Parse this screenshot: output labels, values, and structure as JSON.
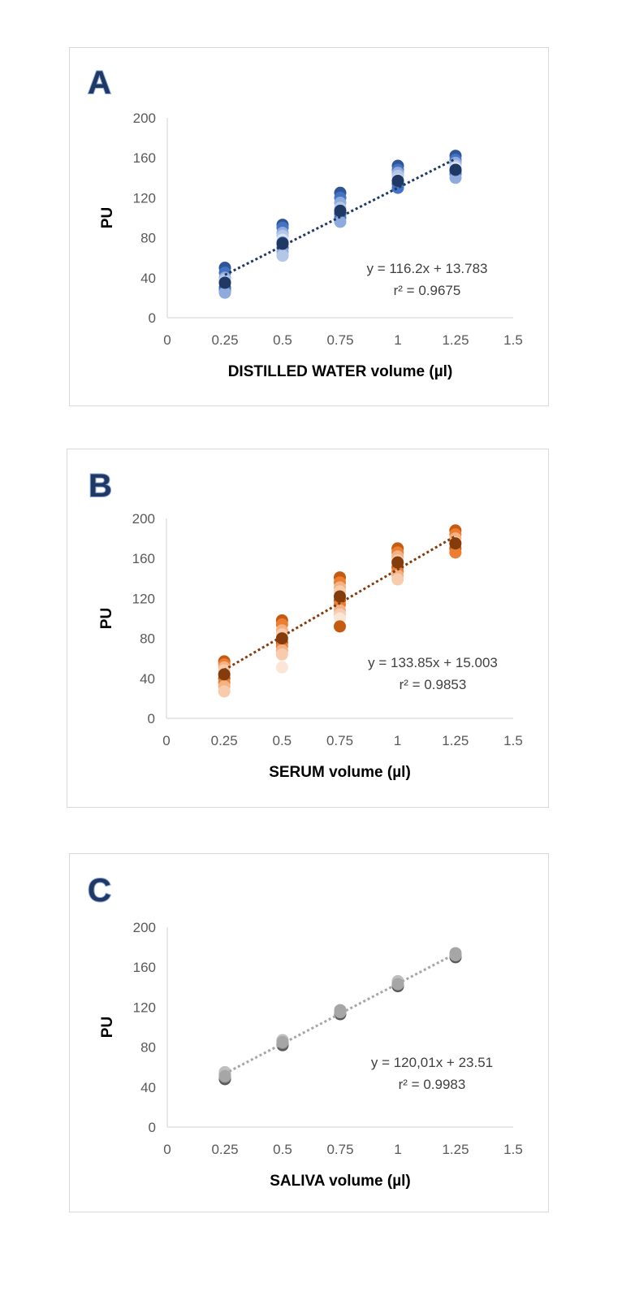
{
  "chart_data": [
    {
      "type": "scatter",
      "panel_label": "A",
      "xlabel": "DISTILLED WATER volume (µl)",
      "ylabel": "PU",
      "xlim": [
        0,
        1.5
      ],
      "ylim": [
        0,
        200
      ],
      "x_ticks": [
        "0",
        "0.25",
        "0.5",
        "0.75",
        "1",
        "1.25",
        "1.5"
      ],
      "y_ticks": [
        "0",
        "40",
        "80",
        "120",
        "160",
        "200"
      ],
      "equation": "y = 116.2x + 13.783",
      "r_squared": "r² = 0.9675",
      "trendline": {
        "slope": 116.2,
        "intercept": 13.783,
        "x_range": [
          0.25,
          1.25
        ]
      },
      "series_colors": [
        "#2f5597",
        "#4472c4",
        "#8faadc",
        "#b4c7e7",
        "#dae3f3"
      ],
      "mean_color": "#1f3864",
      "trend_color": "#1f3864",
      "letter_color": "#1f3864",
      "letter_outline": "#8faadc",
      "points": [
        {
          "x": 0.25,
          "values": [
            50,
            45,
            40,
            38,
            34,
            30,
            27,
            25
          ]
        },
        {
          "x": 0.5,
          "values": [
            93,
            90,
            85,
            82,
            78,
            75,
            70,
            66,
            62
          ]
        },
        {
          "x": 0.75,
          "values": [
            125,
            120,
            115,
            110,
            107,
            104,
            100,
            96
          ]
        },
        {
          "x": 1.0,
          "values": [
            152,
            148,
            145,
            142,
            138,
            134,
            130
          ]
        },
        {
          "x": 1.25,
          "values": [
            162,
            158,
            155,
            152,
            150,
            147,
            144,
            140
          ]
        }
      ],
      "means": [
        {
          "x": 0.25,
          "y": 35
        },
        {
          "x": 0.5,
          "y": 74
        },
        {
          "x": 0.75,
          "y": 107
        },
        {
          "x": 1.0,
          "y": 137
        },
        {
          "x": 1.25,
          "y": 148
        }
      ]
    },
    {
      "type": "scatter",
      "panel_label": "B",
      "xlabel": "SERUM volume (µl)",
      "ylabel": "PU",
      "xlim": [
        0,
        1.5
      ],
      "ylim": [
        0,
        200
      ],
      "x_ticks": [
        "0",
        "0.25",
        "0.5",
        "0.75",
        "1",
        "1.25",
        "1.5"
      ],
      "y_ticks": [
        "0",
        "40",
        "80",
        "120",
        "160",
        "200"
      ],
      "equation": "y = 133.85x + 15.003",
      "r_squared": "r² = 0.9853",
      "trendline": {
        "slope": 133.85,
        "intercept": 15.003,
        "x_range": [
          0.25,
          1.25
        ]
      },
      "series_colors": [
        "#c55a11",
        "#ed7d31",
        "#f4b183",
        "#f8cbad",
        "#fbe5d6"
      ],
      "mean_color": "#843c0c",
      "trend_color": "#843c0c",
      "letter_color": "#1f3864",
      "letter_outline": "#8faadc",
      "points": [
        {
          "x": 0.25,
          "values": [
            57,
            54,
            51,
            48,
            44,
            40,
            36,
            32,
            27
          ]
        },
        {
          "x": 0.5,
          "values": [
            98,
            94,
            88,
            84,
            80,
            76,
            72,
            68,
            64,
            51
          ]
        },
        {
          "x": 0.75,
          "values": [
            141,
            136,
            131,
            127,
            122,
            118,
            114,
            108,
            104,
            100,
            92
          ]
        },
        {
          "x": 1.0,
          "values": [
            170,
            166,
            162,
            158,
            155,
            151,
            147,
            143,
            139
          ]
        },
        {
          "x": 1.25,
          "values": [
            188,
            184,
            180,
            176,
            173,
            170,
            166
          ]
        }
      ],
      "means": [
        {
          "x": 0.25,
          "y": 44
        },
        {
          "x": 0.5,
          "y": 80
        },
        {
          "x": 0.75,
          "y": 122
        },
        {
          "x": 1.0,
          "y": 156
        },
        {
          "x": 1.25,
          "y": 175
        }
      ]
    },
    {
      "type": "scatter",
      "panel_label": "C",
      "xlabel": "SALIVA volume (µl)",
      "ylabel": "PU",
      "xlim": [
        0,
        1.5
      ],
      "ylim": [
        0,
        200
      ],
      "x_ticks": [
        "0",
        "0.25",
        "0.5",
        "0.75",
        "1",
        "1.25",
        "1.5"
      ],
      "y_ticks": [
        "0",
        "40",
        "80",
        "120",
        "160",
        "200"
      ],
      "equation": "y = 120,01x + 23.51",
      "r_squared": "r² = 0.9983",
      "trendline": {
        "slope": 120.01,
        "intercept": 23.51,
        "x_range": [
          0.25,
          1.25
        ]
      },
      "series_colors": [
        "#595959",
        "#7f7f7f",
        "#a6a6a6",
        "#bfbfbf",
        "#d9d9d9"
      ],
      "mean_color": "#a6a6a6",
      "trend_color": "#a6a6a6",
      "letter_color": "#1f3864",
      "letter_outline": "#8faadc",
      "points": [
        {
          "x": 0.25,
          "values": [
            48,
            50,
            53,
            55
          ]
        },
        {
          "x": 0.5,
          "values": [
            82,
            84,
            86,
            87
          ]
        },
        {
          "x": 0.75,
          "values": [
            113,
            115,
            117
          ]
        },
        {
          "x": 1.0,
          "values": [
            141,
            143,
            145,
            146
          ]
        },
        {
          "x": 1.25,
          "values": [
            170,
            172,
            174
          ]
        }
      ],
      "means": [
        {
          "x": 0.25,
          "y": 51
        },
        {
          "x": 0.5,
          "y": 85
        },
        {
          "x": 0.75,
          "y": 115
        },
        {
          "x": 1.0,
          "y": 143
        },
        {
          "x": 1.25,
          "y": 172
        }
      ]
    }
  ]
}
